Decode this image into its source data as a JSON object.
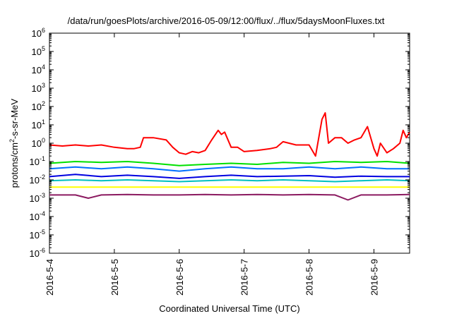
{
  "chart_data": {
    "type": "line",
    "title": "/data/run/goesPlots/archive/2016-05-09/12:00/flux/../flux/5daysMoonFluxes.txt",
    "xlabel": "Coordinated Universal Time (UTC)",
    "ylabel": {
      "pre": "protons/cm",
      "sup": "2",
      "post": "-s-sr-MeV"
    },
    "yscale": "log",
    "ylim": [
      1e-06,
      1000000.0
    ],
    "yticks": [
      {
        "exp": -6,
        "label": "-6"
      },
      {
        "exp": -5,
        "label": "-5"
      },
      {
        "exp": -4,
        "label": "-4"
      },
      {
        "exp": -3,
        "label": "-3"
      },
      {
        "exp": -2,
        "label": "-2"
      },
      {
        "exp": -1,
        "label": "-1"
      },
      {
        "exp": 0,
        "label": "0"
      },
      {
        "exp": 1,
        "label": "1"
      },
      {
        "exp": 2,
        "label": "2"
      },
      {
        "exp": 3,
        "label": "3"
      },
      {
        "exp": 4,
        "label": "4"
      },
      {
        "exp": 5,
        "label": "5"
      },
      {
        "exp": 6,
        "label": "6"
      }
    ],
    "ytick_base": "10",
    "xlim": [
      0,
      5.55
    ],
    "xticks": [
      {
        "day": 0,
        "label": "2016-5-4"
      },
      {
        "day": 1,
        "label": "2016-5-5"
      },
      {
        "day": 2,
        "label": "2016-5-6"
      },
      {
        "day": 3,
        "label": "2016-5-7"
      },
      {
        "day": 4,
        "label": "2016-5-8"
      },
      {
        "day": 5,
        "label": "2016-5-9"
      }
    ],
    "grid": false,
    "legend": "none",
    "series": [
      {
        "color": "#ff0000",
        "x": [
          0,
          0.2,
          0.4,
          0.6,
          0.8,
          1.0,
          1.2,
          1.3,
          1.4,
          1.45,
          1.6,
          1.8,
          1.9,
          2.0,
          2.1,
          2.2,
          2.3,
          2.4,
          2.5,
          2.6,
          2.65,
          2.7,
          2.8,
          2.9,
          3.0,
          3.2,
          3.4,
          3.5,
          3.6,
          3.8,
          4.0,
          4.1,
          4.2,
          4.25,
          4.3,
          4.4,
          4.5,
          4.6,
          4.7,
          4.8,
          4.9,
          5.0,
          5.05,
          5.1,
          5.2,
          5.3,
          5.4,
          5.45,
          5.5,
          5.55
        ],
        "y": [
          0.8,
          0.7,
          0.8,
          0.7,
          0.8,
          0.6,
          0.5,
          0.5,
          0.6,
          2.0,
          2.0,
          1.5,
          0.6,
          0.3,
          0.25,
          0.35,
          0.3,
          0.4,
          1.5,
          5.0,
          3.0,
          4.0,
          0.6,
          0.6,
          0.35,
          0.4,
          0.5,
          0.6,
          1.2,
          0.8,
          0.8,
          0.2,
          20,
          45,
          1.0,
          2.0,
          2.0,
          1.0,
          1.5,
          2.0,
          8.0,
          0.5,
          0.2,
          1.0,
          0.3,
          0.5,
          1.0,
          5.0,
          2.0,
          4.0
        ]
      },
      {
        "color": "#00e000",
        "x": [
          0,
          0.4,
          0.8,
          1.2,
          1.6,
          2.0,
          2.4,
          2.8,
          3.2,
          3.6,
          4.0,
          4.4,
          4.8,
          5.2,
          5.55
        ],
        "y": [
          0.08,
          0.1,
          0.09,
          0.1,
          0.08,
          0.06,
          0.07,
          0.08,
          0.07,
          0.09,
          0.08,
          0.1,
          0.09,
          0.1,
          0.08
        ]
      },
      {
        "color": "#0070ff",
        "x": [
          0,
          0.4,
          0.8,
          1.2,
          1.6,
          2.0,
          2.4,
          2.8,
          3.2,
          3.6,
          4.0,
          4.4,
          4.8,
          5.2,
          5.55
        ],
        "y": [
          0.04,
          0.05,
          0.04,
          0.05,
          0.04,
          0.03,
          0.04,
          0.05,
          0.04,
          0.04,
          0.05,
          0.04,
          0.05,
          0.04,
          0.04
        ]
      },
      {
        "color": "#0000e0",
        "x": [
          0,
          0.4,
          0.8,
          1.2,
          1.6,
          2.0,
          2.4,
          2.8,
          3.2,
          3.6,
          4.0,
          4.4,
          4.8,
          5.2,
          5.55
        ],
        "y": [
          0.015,
          0.02,
          0.015,
          0.018,
          0.015,
          0.012,
          0.015,
          0.018,
          0.015,
          0.016,
          0.017,
          0.014,
          0.016,
          0.015,
          0.015
        ]
      },
      {
        "color": "#00c0c0",
        "x": [
          0,
          0.4,
          0.8,
          1.2,
          1.6,
          2.0,
          2.4,
          2.8,
          3.2,
          3.6,
          4.0,
          4.4,
          4.8,
          5.2,
          5.55
        ],
        "y": [
          0.009,
          0.01,
          0.009,
          0.01,
          0.009,
          0.008,
          0.009,
          0.01,
          0.009,
          0.01,
          0.009,
          0.008,
          0.009,
          0.01,
          0.009
        ]
      },
      {
        "color": "#ffff00",
        "x": [
          0,
          0.4,
          0.8,
          1.2,
          1.6,
          2.0,
          2.4,
          2.8,
          3.2,
          3.6,
          4.0,
          4.4,
          4.8,
          5.2,
          5.55
        ],
        "y": [
          0.004,
          0.004,
          0.004,
          0.004,
          0.004,
          0.004,
          0.004,
          0.004,
          0.004,
          0.004,
          0.004,
          0.004,
          0.004,
          0.004,
          0.004
        ]
      },
      {
        "color": "#8b1a60",
        "x": [
          0,
          0.4,
          0.6,
          0.8,
          1.2,
          1.6,
          2.0,
          2.4,
          2.8,
          3.2,
          3.6,
          4.0,
          4.4,
          4.6,
          4.8,
          5.2,
          5.55
        ],
        "y": [
          0.0015,
          0.0015,
          0.001,
          0.0015,
          0.0016,
          0.0015,
          0.0015,
          0.0016,
          0.0015,
          0.0016,
          0.0015,
          0.0016,
          0.0015,
          0.0008,
          0.0015,
          0.0015,
          0.0016
        ]
      }
    ]
  }
}
